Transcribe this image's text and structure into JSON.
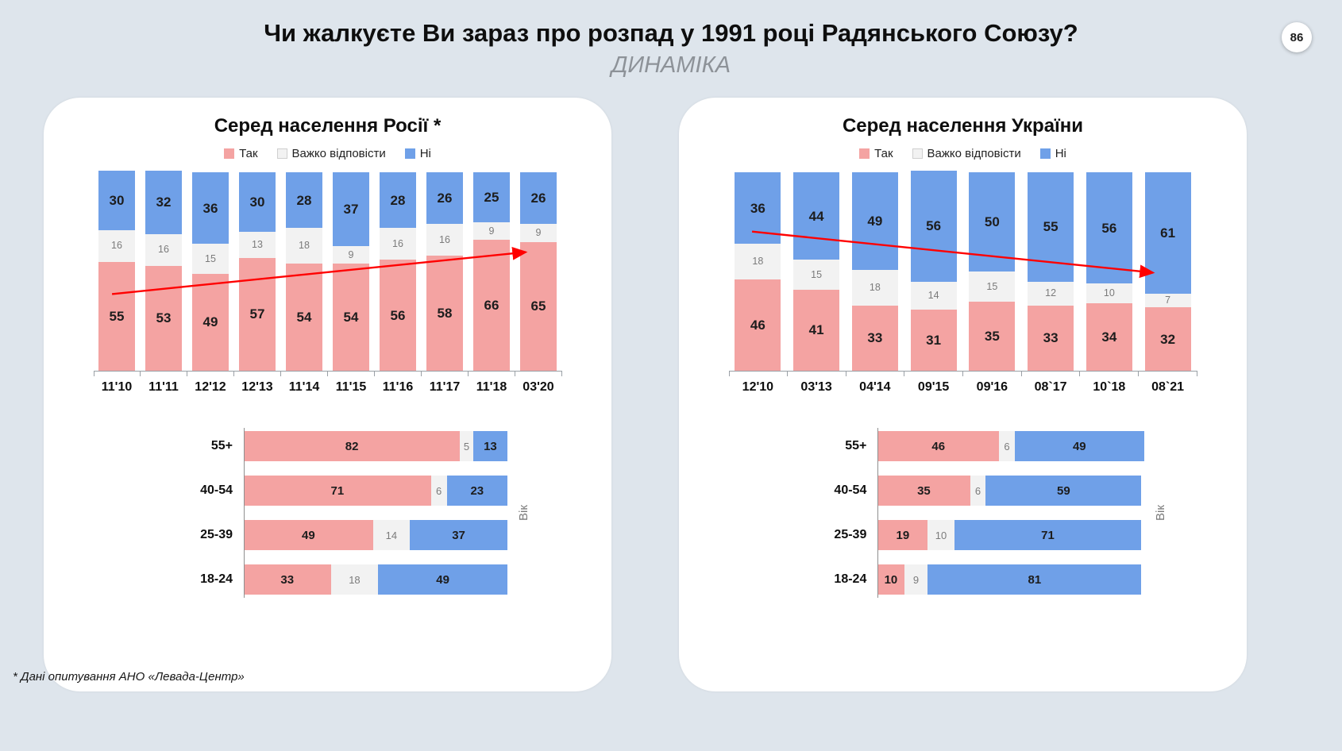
{
  "header": {
    "title": "Чи жалкуєте Ви зараз про розпад у 1991 році Радянського Союзу?",
    "subtitle": "ДИНАМІКА",
    "page_number": "86"
  },
  "footnote": "* Дані опитування АНО «Левада-Центр»",
  "legend": {
    "yes": "Так",
    "hard": "Важко відповісти",
    "no": "Ні"
  },
  "colors": {
    "yes": "#F4A3A2",
    "hard": "#F2F2F2",
    "no": "#6FA0E8",
    "arrow": "#FF0000",
    "background": "#DEE5EC",
    "card": "#FFFFFF"
  },
  "chart_data": [
    {
      "type": "bar",
      "stacked": true,
      "orientation": "vertical",
      "title": "Серед населення Росії *",
      "legend_position": "top",
      "ylim": [
        0,
        100
      ],
      "categories": [
        "11'10",
        "11'11",
        "12'12",
        "12'13",
        "11'14",
        "11'15",
        "11'16",
        "11'17",
        "11'18",
        "03'20"
      ],
      "series": [
        {
          "name": "Так",
          "key": "yes",
          "values": [
            55,
            53,
            49,
            57,
            54,
            54,
            56,
            58,
            66,
            65
          ]
        },
        {
          "name": "Важко відповісти",
          "key": "hard",
          "values": [
            16,
            16,
            15,
            13,
            18,
            9,
            16,
            16,
            9,
            9
          ]
        },
        {
          "name": "Ні",
          "key": "no",
          "values": [
            30,
            32,
            36,
            30,
            28,
            37,
            28,
            26,
            25,
            26
          ]
        }
      ],
      "annotation": {
        "type": "trend-arrow",
        "direction": "up",
        "color": "#FF0000"
      }
    },
    {
      "type": "bar",
      "stacked": true,
      "orientation": "horizontal",
      "ylabel": "Вік",
      "xlim": [
        0,
        100
      ],
      "categories": [
        "55+",
        "40-54",
        "25-39",
        "18-24"
      ],
      "series": [
        {
          "name": "Так",
          "key": "yes",
          "values": [
            82,
            71,
            49,
            33
          ]
        },
        {
          "name": "Важко відповісти",
          "key": "hard",
          "values": [
            5,
            6,
            14,
            18
          ]
        },
        {
          "name": "Ні",
          "key": "no",
          "values": [
            13,
            23,
            37,
            49
          ]
        }
      ]
    },
    {
      "type": "bar",
      "stacked": true,
      "orientation": "vertical",
      "title": "Серед населення України",
      "legend_position": "top",
      "ylim": [
        0,
        100
      ],
      "categories": [
        "12'10",
        "03'13",
        "04'14",
        "09'15",
        "09'16",
        "08`17",
        "10`18",
        "08`21"
      ],
      "series": [
        {
          "name": "Так",
          "key": "yes",
          "values": [
            46,
            41,
            33,
            31,
            35,
            33,
            34,
            32
          ]
        },
        {
          "name": "Важко відповісти",
          "key": "hard",
          "values": [
            18,
            15,
            18,
            14,
            15,
            12,
            10,
            7
          ]
        },
        {
          "name": "Ні",
          "key": "no",
          "values": [
            36,
            44,
            49,
            56,
            50,
            55,
            56,
            61
          ]
        }
      ],
      "annotation": {
        "type": "trend-arrow",
        "direction": "down",
        "color": "#FF0000"
      }
    },
    {
      "type": "bar",
      "stacked": true,
      "orientation": "horizontal",
      "ylabel": "Вік",
      "xlim": [
        0,
        100
      ],
      "categories": [
        "55+",
        "40-54",
        "25-39",
        "18-24"
      ],
      "series": [
        {
          "name": "Так",
          "key": "yes",
          "values": [
            46,
            35,
            19,
            10
          ]
        },
        {
          "name": "Важко відповісти",
          "key": "hard",
          "values": [
            6,
            6,
            10,
            9
          ]
        },
        {
          "name": "Ні",
          "key": "no",
          "values": [
            49,
            59,
            71,
            81
          ]
        }
      ]
    }
  ]
}
